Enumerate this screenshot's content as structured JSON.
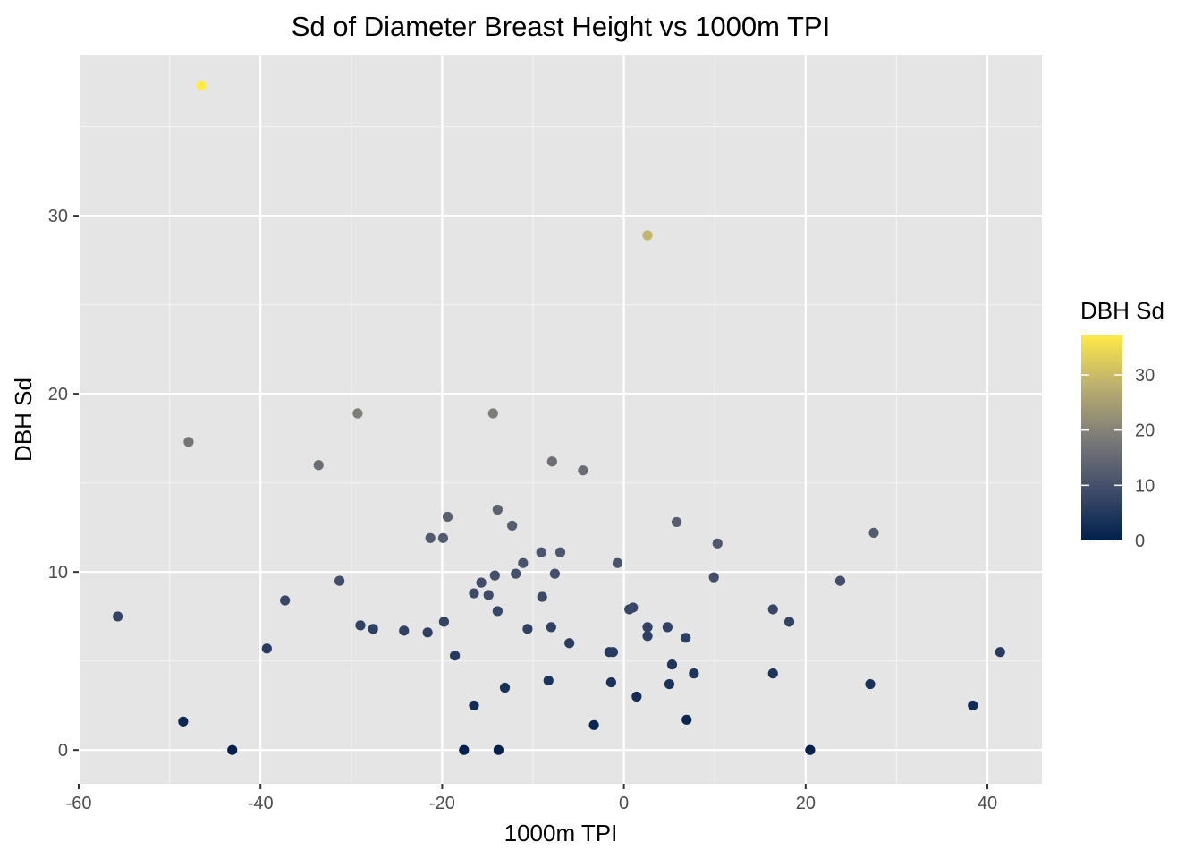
{
  "chart_data": {
    "type": "scatter",
    "title": "Sd of Diameter Breast Height vs 1000m TPI",
    "xlabel": "1000m TPI",
    "ylabel": "DBH Sd",
    "xlim": [
      -60,
      46
    ],
    "ylim": [
      -1.9,
      39
    ],
    "x_ticks": [
      -60,
      -40,
      -20,
      0,
      20,
      40
    ],
    "x_tick_labels": [
      "-60",
      "-40",
      "-20",
      "0",
      "20",
      "40"
    ],
    "y_ticks": [
      0,
      10,
      20,
      30
    ],
    "y_tick_labels": [
      "0",
      "10",
      "20",
      "30"
    ],
    "grid": true,
    "background": "#e5e5e5",
    "legend": {
      "title": "DBH Sd",
      "position": "right",
      "range": [
        0,
        37.3
      ],
      "ticks": [
        0,
        10,
        20,
        30
      ],
      "tick_labels": [
        "0",
        "10",
        "20",
        "30"
      ],
      "colors": [
        "#00204d",
        "#414d6b",
        "#7c7b78",
        "#bcaf6f",
        "#ffea46"
      ]
    },
    "points": [
      {
        "x": -46.5,
        "y": 37.3
      },
      {
        "x": 2.6,
        "y": 28.9
      },
      {
        "x": -29.3,
        "y": 18.9
      },
      {
        "x": -14.4,
        "y": 18.9
      },
      {
        "x": -47.9,
        "y": 17.3
      },
      {
        "x": -33.6,
        "y": 16.0
      },
      {
        "x": -7.9,
        "y": 16.2
      },
      {
        "x": -4.5,
        "y": 15.7
      },
      {
        "x": -13.9,
        "y": 13.5
      },
      {
        "x": -19.4,
        "y": 13.1
      },
      {
        "x": 5.8,
        "y": 12.8
      },
      {
        "x": -12.3,
        "y": 12.6
      },
      {
        "x": 27.5,
        "y": 12.2
      },
      {
        "x": -21.3,
        "y": 11.9
      },
      {
        "x": -19.9,
        "y": 11.9
      },
      {
        "x": 10.3,
        "y": 11.6
      },
      {
        "x": -9.1,
        "y": 11.1
      },
      {
        "x": -7.0,
        "y": 11.1
      },
      {
        "x": -11.1,
        "y": 10.5
      },
      {
        "x": -0.7,
        "y": 10.5
      },
      {
        "x": -14.2,
        "y": 9.8
      },
      {
        "x": -11.9,
        "y": 9.9
      },
      {
        "x": -7.6,
        "y": 9.9
      },
      {
        "x": 9.9,
        "y": 9.7
      },
      {
        "x": -31.3,
        "y": 9.5
      },
      {
        "x": -15.7,
        "y": 9.4
      },
      {
        "x": 23.8,
        "y": 9.5
      },
      {
        "x": -16.5,
        "y": 8.8
      },
      {
        "x": -14.9,
        "y": 8.7
      },
      {
        "x": -9.0,
        "y": 8.6
      },
      {
        "x": -37.3,
        "y": 8.4
      },
      {
        "x": 0.6,
        "y": 7.9
      },
      {
        "x": 1.0,
        "y": 8.0
      },
      {
        "x": 16.4,
        "y": 7.9
      },
      {
        "x": -13.9,
        "y": 7.8
      },
      {
        "x": -55.7,
        "y": 7.5
      },
      {
        "x": 18.2,
        "y": 7.2
      },
      {
        "x": -19.8,
        "y": 7.2
      },
      {
        "x": -29.0,
        "y": 7.0
      },
      {
        "x": -27.6,
        "y": 6.8
      },
      {
        "x": -24.2,
        "y": 6.7
      },
      {
        "x": -21.6,
        "y": 6.6
      },
      {
        "x": -10.6,
        "y": 6.8
      },
      {
        "x": -8.0,
        "y": 6.9
      },
      {
        "x": 2.6,
        "y": 6.9
      },
      {
        "x": 4.8,
        "y": 6.9
      },
      {
        "x": 2.6,
        "y": 6.4
      },
      {
        "x": 6.8,
        "y": 6.3
      },
      {
        "x": -6.0,
        "y": 6.0
      },
      {
        "x": -39.3,
        "y": 5.7
      },
      {
        "x": -1.6,
        "y": 5.5
      },
      {
        "x": -1.2,
        "y": 5.5
      },
      {
        "x": 41.4,
        "y": 5.5
      },
      {
        "x": -18.6,
        "y": 5.3
      },
      {
        "x": 5.3,
        "y": 4.8
      },
      {
        "x": 7.7,
        "y": 4.3
      },
      {
        "x": 16.4,
        "y": 4.3
      },
      {
        "x": -8.3,
        "y": 3.9
      },
      {
        "x": -1.4,
        "y": 3.8
      },
      {
        "x": 5.0,
        "y": 3.7
      },
      {
        "x": 27.1,
        "y": 3.7
      },
      {
        "x": -13.1,
        "y": 3.5
      },
      {
        "x": 1.4,
        "y": 3.0
      },
      {
        "x": -16.5,
        "y": 2.5
      },
      {
        "x": 38.4,
        "y": 2.5
      },
      {
        "x": 6.9,
        "y": 1.7
      },
      {
        "x": -48.5,
        "y": 1.6
      },
      {
        "x": -3.3,
        "y": 1.4
      },
      {
        "x": -43.1,
        "y": 0.0
      },
      {
        "x": -17.6,
        "y": 0.0
      },
      {
        "x": -13.8,
        "y": 0.0
      },
      {
        "x": 20.5,
        "y": 0.0
      }
    ]
  }
}
